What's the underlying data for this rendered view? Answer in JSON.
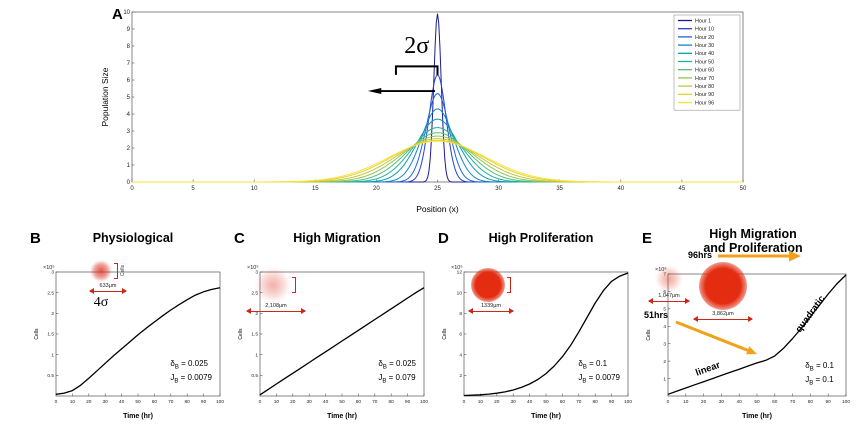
{
  "figure": {
    "background": "#ffffff",
    "colors": {
      "arrow_orange": "#f2a11b",
      "spheroid_red": "#d92b1c",
      "curve_black": "#000000"
    }
  },
  "chart_data": [
    {
      "panel": "A",
      "type": "line",
      "title": "",
      "xlabel": "Position (x)",
      "ylabel": "Population Size",
      "xlim": [
        0,
        50
      ],
      "ylim": [
        0,
        10
      ],
      "xticks": [
        0,
        5,
        10,
        15,
        20,
        25,
        30,
        35,
        40,
        45,
        50
      ],
      "yticks": [
        0,
        1,
        2,
        3,
        4,
        5,
        6,
        7,
        8,
        9,
        10
      ],
      "center": 25,
      "legend_position": "upper right",
      "annotations": {
        "sigma_label": "2σ"
      },
      "series": [
        {
          "name": "Hour 1",
          "color": "#1c1c8f",
          "peak": 9.9,
          "sigma": 0.3
        },
        {
          "name": "Hour 10",
          "color": "#2541cc",
          "peak": 6.3,
          "sigma": 0.7
        },
        {
          "name": "Hour 20",
          "color": "#1f63d6",
          "peak": 5.2,
          "sigma": 0.95
        },
        {
          "name": "Hour 30",
          "color": "#1682c8",
          "peak": 4.3,
          "sigma": 1.3
        },
        {
          "name": "Hour 40",
          "color": "#0d9cb4",
          "peak": 3.7,
          "sigma": 1.7
        },
        {
          "name": "Hour 50",
          "color": "#21b29a",
          "peak": 3.2,
          "sigma": 2.1
        },
        {
          "name": "Hour 60",
          "color": "#55bd78",
          "peak": 2.9,
          "sigma": 2.5
        },
        {
          "name": "Hour 70",
          "color": "#93c452",
          "peak": 2.7,
          "sigma": 2.9
        },
        {
          "name": "Hour 80",
          "color": "#c3c83c",
          "peak": 2.55,
          "sigma": 3.3
        },
        {
          "name": "Hour 90",
          "color": "#e6d22f",
          "peak": 2.45,
          "sigma": 3.7
        },
        {
          "name": "Hour 96",
          "color": "#f7e13b",
          "peak": 2.4,
          "sigma": 3.95
        }
      ]
    },
    {
      "panel": "B",
      "type": "line",
      "title": "Physiological",
      "xlabel": "Time (hr)",
      "ylabel": "Cells",
      "y_exponent": "×10⁵",
      "xlim": [
        0,
        100
      ],
      "ylim": [
        0,
        3
      ],
      "xticks": [
        0,
        10,
        20,
        30,
        40,
        50,
        60,
        70,
        80,
        90,
        100
      ],
      "yticks": [
        0.5,
        1,
        1.5,
        2,
        2.5,
        3
      ],
      "x": [
        0,
        5,
        10,
        15,
        20,
        25,
        30,
        35,
        40,
        45,
        50,
        55,
        60,
        65,
        70,
        75,
        80,
        85,
        90,
        95,
        100
      ],
      "y": [
        0.04,
        0.07,
        0.13,
        0.26,
        0.43,
        0.61,
        0.79,
        0.97,
        1.14,
        1.31,
        1.48,
        1.64,
        1.79,
        1.94,
        2.08,
        2.21,
        2.33,
        2.44,
        2.52,
        2.58,
        2.62
      ],
      "params": [
        {
          "sym": "δ",
          "sub": "B",
          "eq": "= 0.025"
        },
        {
          "sym": "J",
          "sub": "B",
          "eq": "= 0.0079"
        }
      ],
      "inset": {
        "scale_label": "633μm",
        "sigma_label": "4σ",
        "axis_label": "Cells"
      }
    },
    {
      "panel": "C",
      "type": "line",
      "title": "High Migration",
      "xlabel": "Time (hr)",
      "ylabel": "Cells",
      "y_exponent": "×10⁵",
      "xlim": [
        0,
        100
      ],
      "ylim": [
        0,
        3
      ],
      "xticks": [
        0,
        10,
        20,
        30,
        40,
        50,
        60,
        70,
        80,
        90,
        100
      ],
      "yticks": [
        0.5,
        1,
        1.5,
        2,
        2.5,
        3
      ],
      "x": [
        0,
        5,
        10,
        15,
        20,
        25,
        30,
        35,
        40,
        45,
        50,
        55,
        60,
        65,
        70,
        75,
        80,
        85,
        90,
        95,
        100
      ],
      "y": [
        0.03,
        0.16,
        0.29,
        0.42,
        0.55,
        0.68,
        0.81,
        0.94,
        1.07,
        1.2,
        1.33,
        1.46,
        1.59,
        1.72,
        1.85,
        1.98,
        2.11,
        2.24,
        2.37,
        2.5,
        2.62
      ],
      "params": [
        {
          "sym": "δ",
          "sub": "B",
          "eq": "= 0.025"
        },
        {
          "sym": "J",
          "sub": "B",
          "eq": "= 0.079"
        }
      ],
      "inset": {
        "scale_label": "2,108μm"
      }
    },
    {
      "panel": "D",
      "type": "line",
      "title": "High Proliferation",
      "xlabel": "Time (hr)",
      "ylabel": "Cells",
      "y_exponent": "×10⁵",
      "xlim": [
        0,
        100
      ],
      "ylim": [
        0,
        12
      ],
      "xticks": [
        0,
        10,
        20,
        30,
        40,
        50,
        60,
        70,
        80,
        90,
        100
      ],
      "yticks": [
        2,
        4,
        6,
        8,
        10,
        12
      ],
      "x": [
        0,
        5,
        10,
        15,
        20,
        25,
        30,
        35,
        40,
        45,
        50,
        55,
        60,
        65,
        70,
        75,
        80,
        85,
        90,
        95,
        100
      ],
      "y": [
        0.05,
        0.08,
        0.12,
        0.18,
        0.27,
        0.4,
        0.58,
        0.83,
        1.16,
        1.6,
        2.17,
        2.9,
        3.8,
        4.9,
        6.2,
        7.6,
        9.0,
        10.2,
        11.1,
        11.6,
        11.9
      ],
      "params": [
        {
          "sym": "δ",
          "sub": "B",
          "eq": "= 0.1"
        },
        {
          "sym": "J",
          "sub": "B",
          "eq": "= 0.0079"
        }
      ],
      "inset": {
        "scale_label": "1339μm"
      }
    },
    {
      "panel": "E",
      "type": "line",
      "title": "High Migration\nand Proliferation",
      "xlabel": "Time (hr)",
      "ylabel": "Cells",
      "y_exponent": "×10⁶",
      "xlim": [
        0,
        100
      ],
      "ylim": [
        0,
        7
      ],
      "xticks": [
        0,
        10,
        20,
        30,
        40,
        50,
        60,
        70,
        80,
        90,
        100
      ],
      "yticks": [
        1,
        2,
        3,
        4,
        5,
        6,
        7
      ],
      "x": [
        0,
        5,
        10,
        15,
        20,
        25,
        30,
        35,
        40,
        45,
        50,
        55,
        60,
        65,
        70,
        75,
        80,
        85,
        90,
        95,
        100
      ],
      "y": [
        0.1,
        0.28,
        0.46,
        0.64,
        0.82,
        1.0,
        1.18,
        1.36,
        1.54,
        1.72,
        1.9,
        2.05,
        2.3,
        2.75,
        3.3,
        3.9,
        4.55,
        5.2,
        5.85,
        6.45,
        6.95
      ],
      "params": [
        {
          "sym": "δ",
          "sub": "B",
          "eq": "= 0.1"
        },
        {
          "sym": "J",
          "sub": "B",
          "eq": "= 0.1"
        }
      ],
      "annotations": {
        "t51": "51hrs",
        "t96": "96hrs",
        "linear": "linear",
        "quadratic": "quadratic"
      },
      "insets": [
        {
          "scale_label": "1,047μm"
        },
        {
          "scale_label": "3,862μm"
        }
      ]
    }
  ]
}
